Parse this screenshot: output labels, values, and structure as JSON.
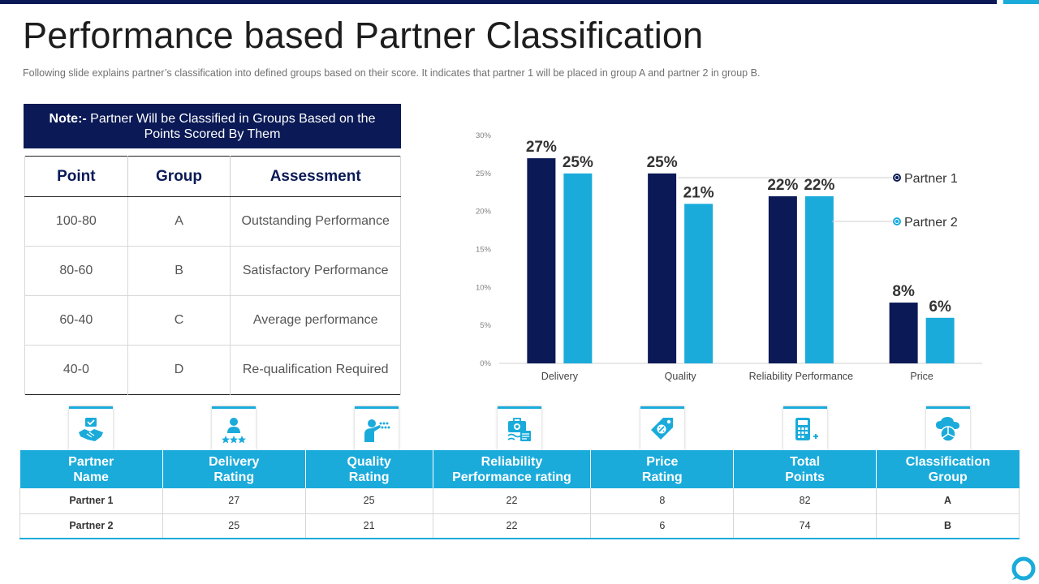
{
  "title": "Performance based Partner Classification",
  "subtitle": "Following slide explains partner’s classification into defined groups based on their score. It indicates that partner 1 will be placed in group A and partner 2 in group B.",
  "note": {
    "prefix": "Note:-",
    "line1": " Partner Will be Classified in Groups Based on the",
    "line2": "Points Scored By Them"
  },
  "group_table": {
    "headers": [
      "Point",
      "Group",
      "Assessment"
    ],
    "rows": [
      [
        "100-80",
        "A",
        "Outstanding Performance"
      ],
      [
        "80-60",
        "B",
        "Satisfactory Performance"
      ],
      [
        "60-40",
        "C",
        "Average performance"
      ],
      [
        "40-0",
        "D",
        "Re-qualification Required"
      ]
    ]
  },
  "chart_data": {
    "type": "bar",
    "categories": [
      "Delivery",
      "Quality",
      "Reliability Performance",
      "Price"
    ],
    "series": [
      {
        "name": "Partner 1",
        "values": [
          27,
          25,
          22,
          8
        ],
        "labels": [
          "27%",
          "25%",
          "22%",
          "8%"
        ],
        "color": "#0b1a56"
      },
      {
        "name": "Partner 2",
        "values": [
          25,
          21,
          22,
          6
        ],
        "labels": [
          "25%",
          "21%",
          "22%",
          "6%"
        ],
        "color": "#1aabdb"
      }
    ],
    "yticks": [
      "0%",
      "5%",
      "10%",
      "15%",
      "20%",
      "25%",
      "30%"
    ],
    "ylim": [
      0,
      30
    ],
    "legend": "right",
    "grid": false
  },
  "icons": [
    "handshake-icon",
    "user-stars-icon",
    "presenter-icon",
    "toolbox-icon",
    "price-tag-icon",
    "calculator-icon",
    "cloud-chart-icon"
  ],
  "ratings_table": {
    "headers": [
      "Partner\nName",
      "Delivery\nRating",
      "Quality\nRating",
      "Reliability\nPerformance rating",
      "Price\nRating",
      "Total\nPoints",
      "Classification\nGroup"
    ],
    "rows": [
      [
        "Partner 1",
        "27",
        "25",
        "22",
        "8",
        "82",
        "A"
      ],
      [
        "Partner 2",
        "25",
        "21",
        "22",
        "6",
        "74",
        "B"
      ]
    ]
  },
  "colors": {
    "navy": "#0b1a56",
    "cyan": "#1aabdb"
  }
}
